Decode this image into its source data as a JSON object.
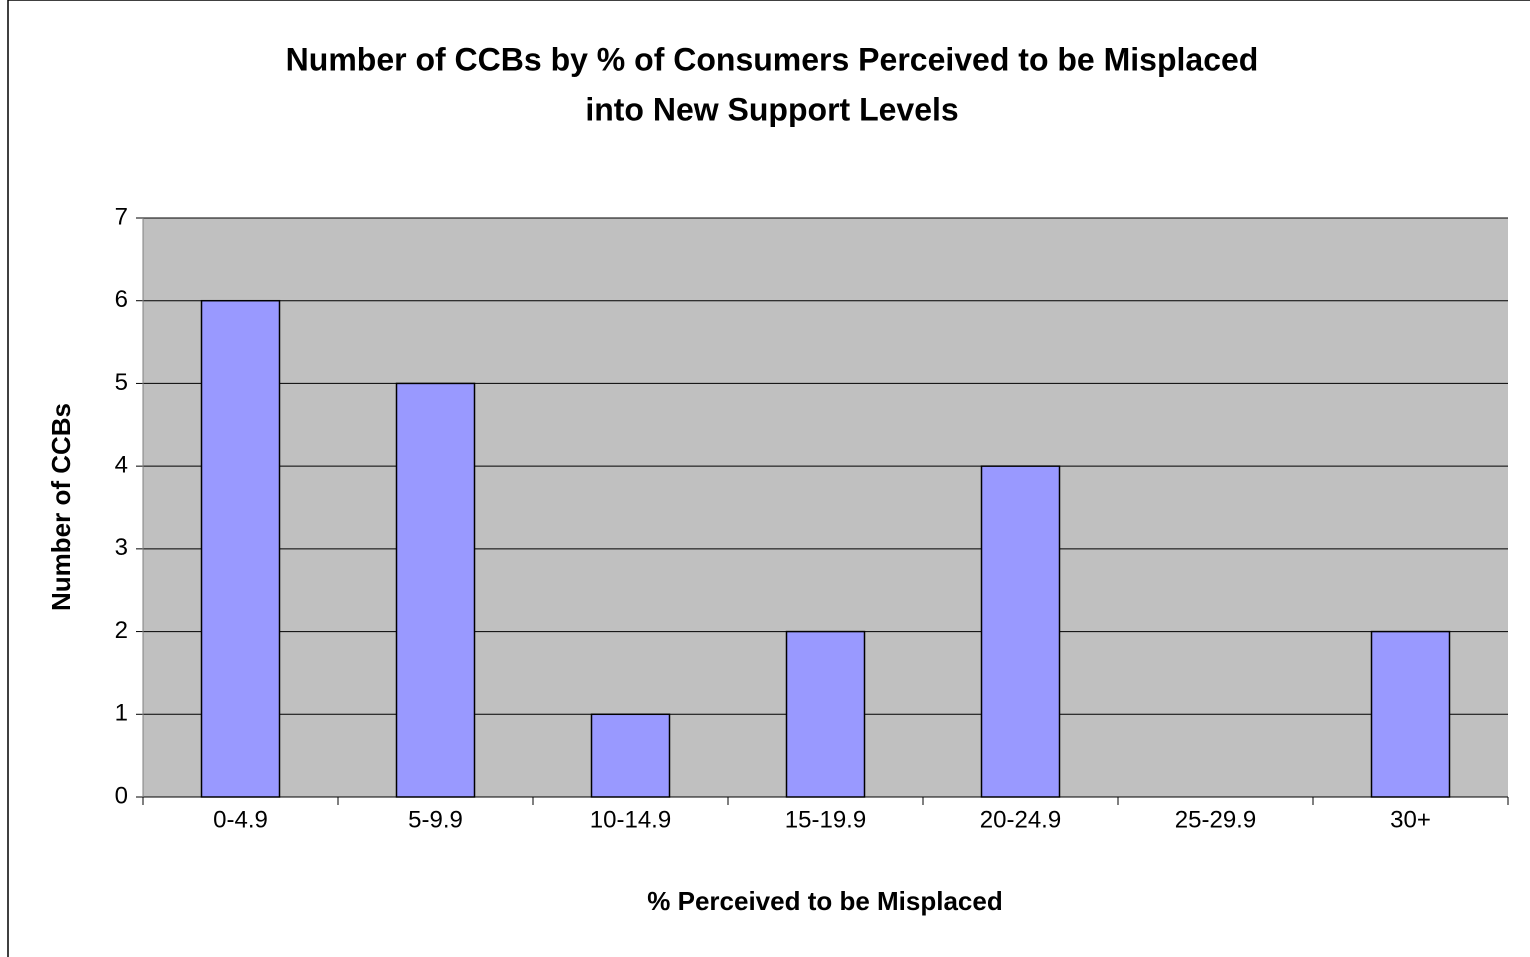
{
  "chart_data": {
    "type": "bar",
    "title": [
      "Number of CCBs by % of Consumers Perceived to be Misplaced",
      "into New Support Levels"
    ],
    "x_label": "% Perceived to be Misplaced",
    "y_label": "Number of CCBs",
    "categories": [
      "0-4.9",
      "5-9.9",
      "10-14.9",
      "15-19.9",
      "20-24.9",
      "25-29.9",
      "30+"
    ],
    "values": [
      6,
      5,
      1,
      2,
      4,
      0,
      2
    ],
    "color": "#9999ff",
    "ylim": [
      0,
      7
    ],
    "yticks": [
      0,
      1,
      2,
      3,
      4,
      5,
      6,
      7
    ],
    "grid": true
  }
}
